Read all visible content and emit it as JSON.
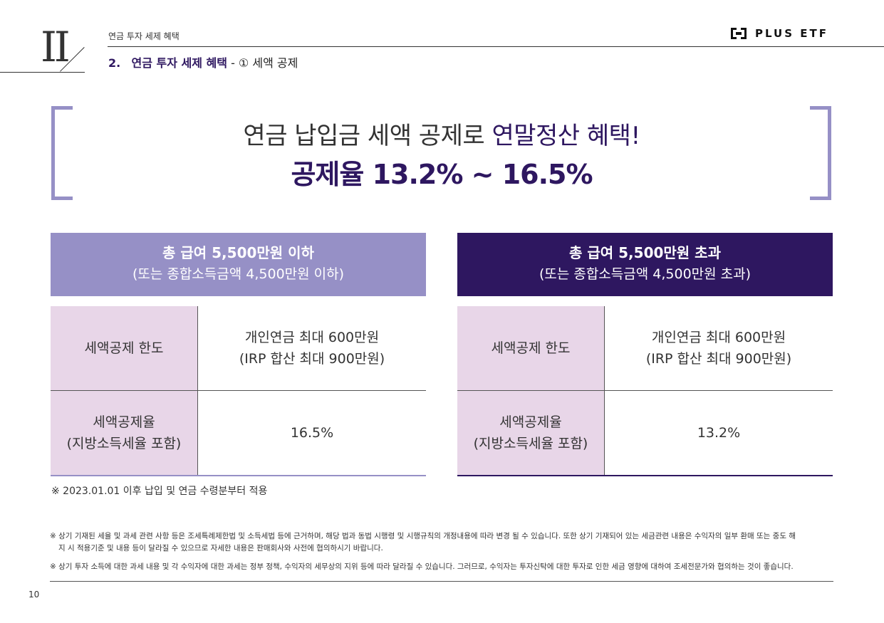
{
  "header": {
    "chapter": "II",
    "section_small": "연금 투자 세제 혜택",
    "section_number": "2.",
    "section_title": "연금 투자 세제 혜택",
    "section_sub": "- ① 세액 공제",
    "logo_text": "PLUS ETF"
  },
  "headline": {
    "line1_a": "연금 납입금 세액 공제로 ",
    "line1_b": "연말정산 혜택!",
    "line2": "공제율 13.2% ~ 16.5%"
  },
  "panels": [
    {
      "title": "총 급여 5,500만원 이하",
      "subtitle": "(또는 종합소득금액 4,500만원 이하)",
      "rows": [
        {
          "label": [
            "세액공제 한도"
          ],
          "value": [
            "개인연금 최대 600만원",
            "(IRP 합산 최대 900만원)"
          ]
        },
        {
          "label": [
            "세액공제율",
            "(지방소득세율 포함)"
          ],
          "value": [
            "16.5%"
          ]
        }
      ]
    },
    {
      "title": "총 급여 5,500만원 초과",
      "subtitle": "(또는 종합소득금액 4,500만원 초과)",
      "rows": [
        {
          "label": [
            "세액공제 한도"
          ],
          "value": [
            "개인연금 최대 600만원",
            "(IRP 합산 최대 900만원)"
          ]
        },
        {
          "label": [
            "세액공제율",
            "(지방소득세율 포함)"
          ],
          "value": [
            "13.2%"
          ]
        }
      ]
    }
  ],
  "note": "※ 2023.01.01 이후 납입 및 연금 수령분부터 적용",
  "fineprint": [
    "※ 상기 기재된 세율 및 과세 관련 사항 등은 조세특례제한법 및 소득세법 등에 근거하며, 해당 법과 동법 시행령 및 시행규칙의 개정내용에 따라 변경 될 수 있습니다. 또한 상기 기재되어 있는 세금관련 내용은 수익자의 일부 환매 또는 중도 해",
    "지 시 적용기준 및 내용 등이 달라질 수 있으므로 자세한 내용은 판매회사와 사전에 협의하시기 바랍니다.",
    "※ 상기 투자 소득에 대한 과세 내용 및 각 수익자에 대한 과세는 정부 정책, 수익자의 세무상의 지위 등에 따라 달라질 수 있습니다. 그러므로, 수익자는 투자신탁에 대한 투자로 인한 세금 영향에 대하여 조세전문가와 협의하는 것이 좋습니다."
  ],
  "page_number": "10",
  "colors": {
    "light_panel": "#9690c6",
    "dark_panel": "#2e1760",
    "label_bg": "#e8d6e8"
  }
}
